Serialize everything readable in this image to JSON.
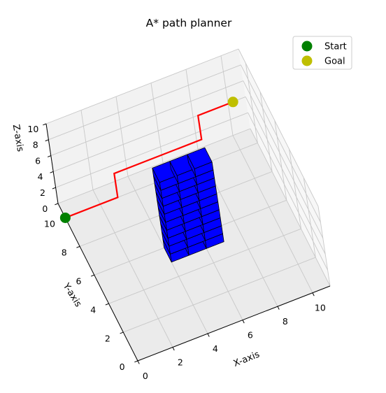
{
  "chart_data": {
    "type": "3d-line",
    "title": "A* path planner",
    "xlabel": "X-axis",
    "ylabel": "Y-axis",
    "zlabel": "Z-axis",
    "xlim": [
      0,
      11
    ],
    "ylim": [
      0,
      11
    ],
    "zlim": [
      0,
      10
    ],
    "xticks": [
      0,
      2,
      4,
      6,
      8,
      10
    ],
    "yticks": [
      0,
      2,
      4,
      6,
      8,
      10
    ],
    "zticks": [
      0,
      2,
      4,
      6,
      8,
      10
    ],
    "grid": true,
    "legend": {
      "placement": "upper right",
      "entries": [
        {
          "label": "Start",
          "color": "#008000"
        },
        {
          "label": "Goal",
          "color": "#bfbf00"
        }
      ]
    },
    "start": {
      "x": 0,
      "y": 10,
      "z": 0,
      "color": "#008000"
    },
    "goal": {
      "x": 10,
      "y": 10,
      "z": 6,
      "color": "#bfbf00"
    },
    "path": {
      "color": "#ff0000",
      "points": [
        {
          "x": 0,
          "y": 10,
          "z": 0
        },
        {
          "x": 3,
          "y": 10,
          "z": 0
        },
        {
          "x": 3,
          "y": 10,
          "z": 3
        },
        {
          "x": 8,
          "y": 10,
          "z": 3
        },
        {
          "x": 8,
          "y": 10,
          "z": 6
        },
        {
          "x": 10,
          "y": 10,
          "z": 6
        }
      ]
    },
    "obstacle": {
      "color": "#0000ff",
      "edge_color": "#000000",
      "x_cells": [
        4,
        5,
        6
      ],
      "y_cells": [
        5
      ],
      "z_cells": [
        0,
        1,
        2,
        3,
        4,
        5,
        6,
        7,
        8,
        9
      ]
    }
  }
}
